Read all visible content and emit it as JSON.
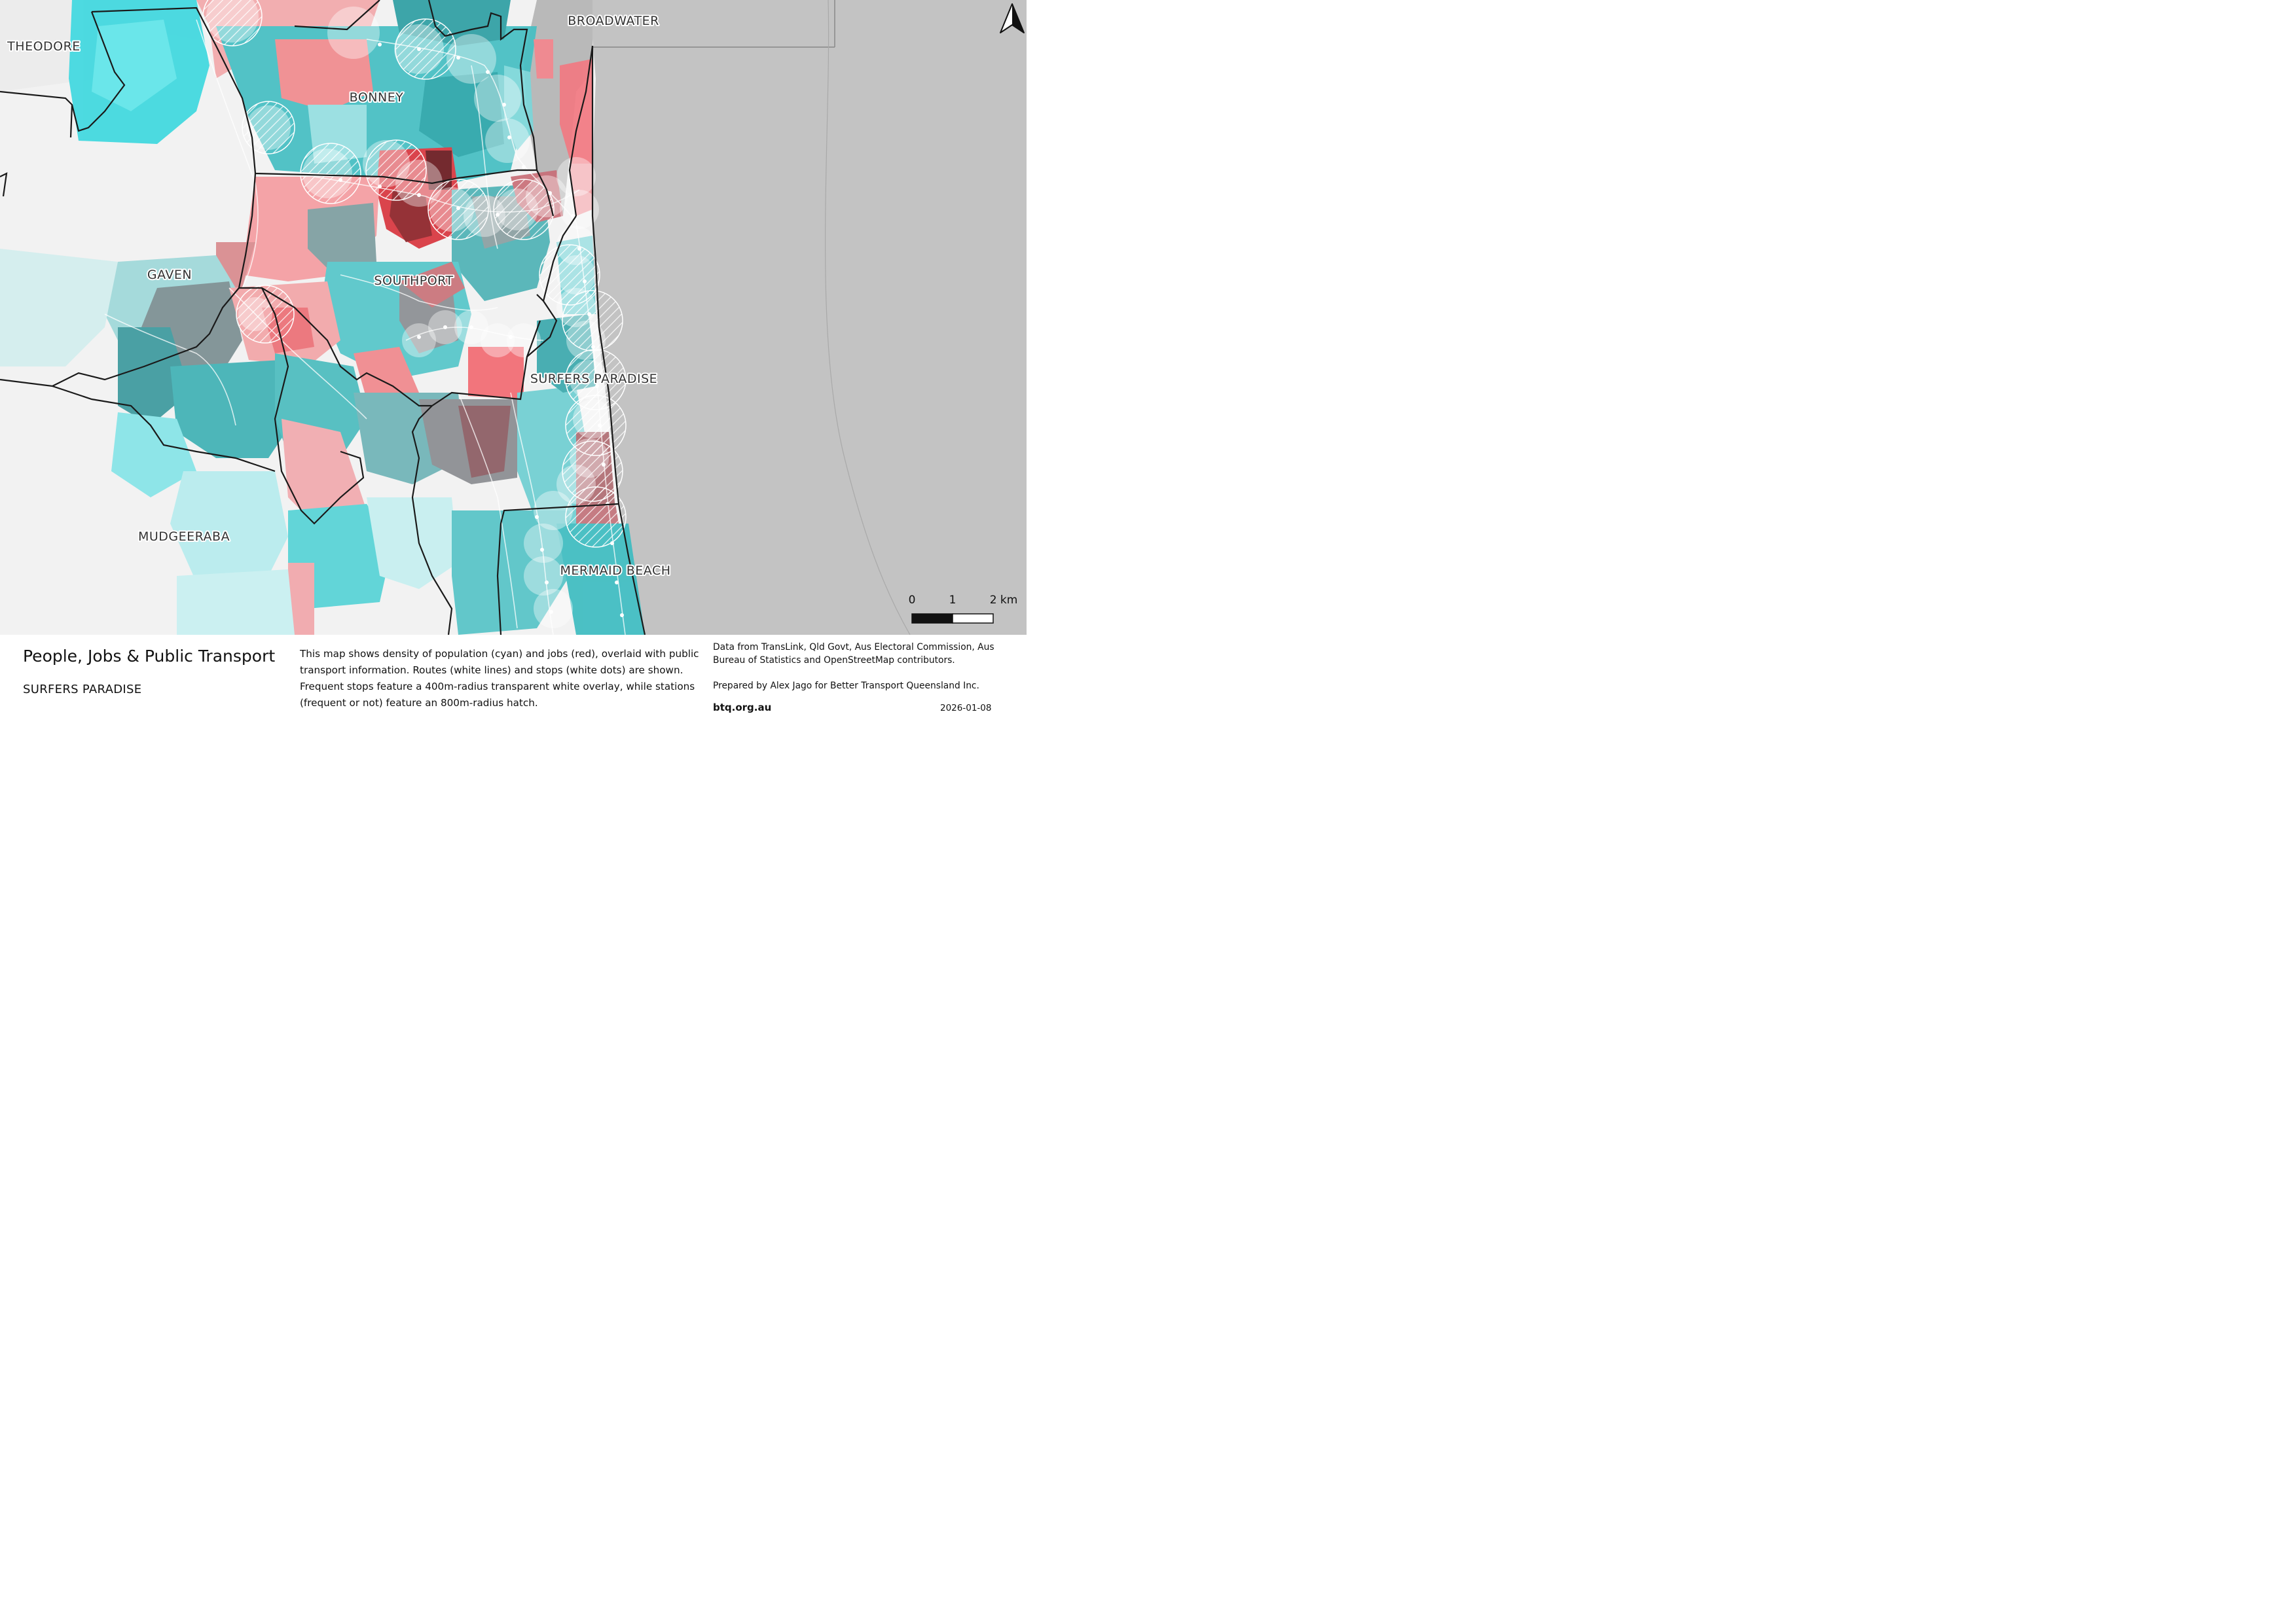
{
  "map": {
    "place_labels": [
      "THEODORE",
      "BROADWATER",
      "BONNEY",
      "GAVEN",
      "SOUTHPORT",
      "SURFERS PARADISE",
      "MUDGEERABA",
      "MERMAID BEACH"
    ],
    "scale_labels": [
      "0",
      "1",
      "2 km"
    ],
    "colors": {
      "population": "#3fd3d8",
      "jobs": "#f06070",
      "ocean": "#c3c3c3",
      "land": "#f2f2f2",
      "boundary": "#1a1a1a",
      "transit": "#ffffff"
    },
    "icons": [
      "north-arrow-icon"
    ]
  },
  "footer": {
    "title": "People, Jobs & Public Transport",
    "subtitle": "SURFERS PARADISE",
    "description": "This map shows density of population (cyan) and jobs (red), overlaid with public transport information. Routes (white lines) and stops (white dots) are shown. Frequent stops feature a 400m-radius transparent white overlay, while stations (frequent or not) feature an 800m-radius hatch.",
    "credits": "Data from TransLink,  Qld Govt,  Aus Electoral Commission, Aus Bureau of Statistics and OpenStreetMap contributors.",
    "prepared": "Prepared by Alex Jago for Better Transport Queensland Inc.",
    "site": "btq.org.au",
    "date": "2026-01-08"
  }
}
